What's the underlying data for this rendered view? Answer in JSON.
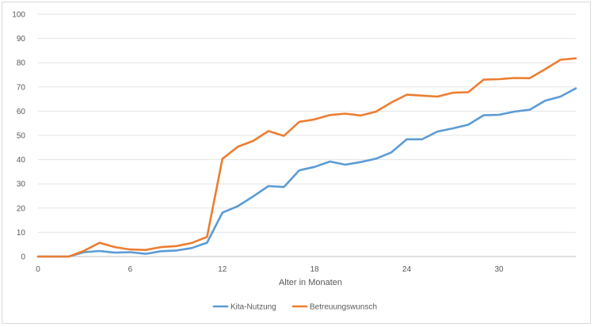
{
  "chart_data": {
    "type": "line",
    "title": "",
    "xlabel": "Alter in Monaten",
    "ylabel": "",
    "xlim": [
      0,
      35
    ],
    "ylim": [
      0,
      100
    ],
    "x_ticks": [
      0,
      6,
      12,
      18,
      24,
      30
    ],
    "y_ticks": [
      0,
      10,
      20,
      30,
      40,
      50,
      60,
      70,
      80,
      90,
      100
    ],
    "grid": "horizontal",
    "legend_position": "bottom",
    "x": [
      0,
      1,
      2,
      3,
      4,
      5,
      6,
      7,
      8,
      9,
      10,
      11,
      12,
      13,
      14,
      15,
      16,
      17,
      18,
      19,
      20,
      21,
      22,
      23,
      24,
      25,
      26,
      27,
      28,
      29,
      30,
      31,
      32,
      33,
      34,
      35
    ],
    "series": [
      {
        "name": "Kita-Nutzung",
        "color": "#5b9bd5",
        "values": [
          0,
          0,
          0,
          1.8,
          2.3,
          1.6,
          1.8,
          1.1,
          2.2,
          2.5,
          3.5,
          5.7,
          18.1,
          20.8,
          24.8,
          29.1,
          28.7,
          35.6,
          37.0,
          39.2,
          37.9,
          39.0,
          40.4,
          43.0,
          48.4,
          48.4,
          51.6,
          52.9,
          54.4,
          58.3,
          58.5,
          59.8,
          60.6,
          64.3,
          66.0,
          69.4
        ]
      },
      {
        "name": "Betreuungswunsch",
        "color": "#ed7d31",
        "values": [
          0,
          0,
          0,
          2.4,
          5.7,
          3.9,
          2.9,
          2.7,
          3.9,
          4.3,
          5.6,
          8.1,
          40.3,
          45.3,
          47.7,
          51.8,
          49.8,
          55.6,
          56.6,
          58.4,
          59.0,
          58.2,
          59.8,
          63.6,
          66.8,
          66.4,
          66.0,
          67.6,
          67.8,
          73.0,
          73.2,
          73.7,
          73.6,
          77.3,
          81.2,
          81.8
        ]
      }
    ]
  }
}
